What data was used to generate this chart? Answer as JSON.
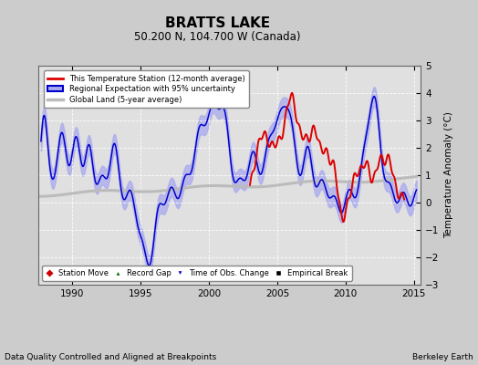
{
  "title": "BRATTS LAKE",
  "subtitle": "50.200 N, 104.700 W (Canada)",
  "ylabel": "Temperature Anomaly (°C)",
  "xlabel_left": "Data Quality Controlled and Aligned at Breakpoints",
  "xlabel_right": "Berkeley Earth",
  "ylim": [
    -3,
    5
  ],
  "xlim": [
    1987.5,
    2015.5
  ],
  "xticks": [
    1990,
    1995,
    2000,
    2005,
    2010,
    2015
  ],
  "yticks": [
    -3,
    -2,
    -1,
    0,
    1,
    2,
    3,
    4,
    5
  ],
  "bg_color": "#cccccc",
  "plot_bg_color": "#e0e0e0",
  "grid_color": "#ffffff",
  "red_color": "#dd0000",
  "blue_color": "#0000cc",
  "blue_fill_color": "#aaaaee",
  "gray_color": "#bbbbbb",
  "legend1_entries": [
    "This Temperature Station (12-month average)",
    "Regional Expectation with 95% uncertainty",
    "Global Land (5-year average)"
  ],
  "legend2_entries": [
    "Station Move",
    "Record Gap",
    "Time of Obs. Change",
    "Empirical Break"
  ]
}
